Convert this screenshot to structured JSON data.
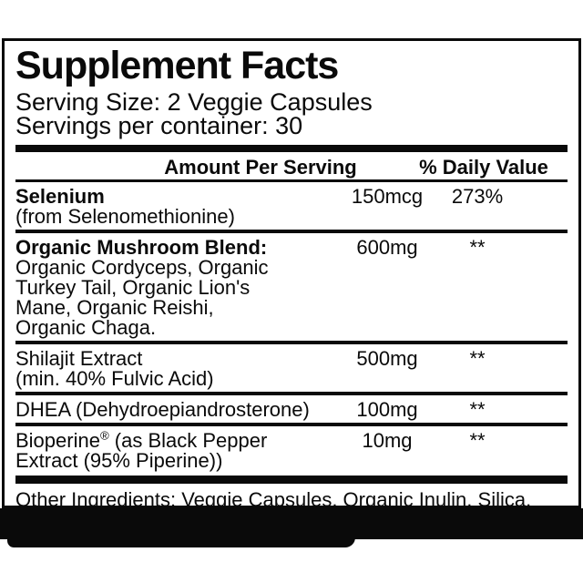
{
  "label": {
    "title": "Supplement Facts",
    "serving_size": "Serving Size: 2 Veggie Capsules",
    "servings_per_container": "Servings per container: 30",
    "columns": {
      "amount_header": "Amount Per Serving",
      "daily_value_header": "% Daily Value"
    },
    "rows": [
      {
        "name": "Selenium",
        "desc": "(from Selenomethionine)",
        "amount": "150mcg",
        "daily_value": "273%"
      },
      {
        "name": "Organic Mushroom Blend:",
        "desc": "Organic Cordyceps, Organic\nTurkey Tail, Organic Lion's\nMane, Organic Reishi,\nOrganic Chaga.",
        "amount": "600mg",
        "daily_value": "**"
      },
      {
        "name": "Shilajit Extract",
        "desc": "(min. 40% Fulvic Acid)",
        "amount": "500mg",
        "daily_value": "**"
      },
      {
        "name": "DHEA (Dehydroepiandrosterone)",
        "desc": "",
        "amount": "100mg",
        "daily_value": "**"
      },
      {
        "name_pre": "Bioperine",
        "name_sup": "®",
        "name_post": " (as Black Pepper\nExtract (95% Piperine))",
        "amount": "10mg",
        "daily_value": "**"
      }
    ],
    "other_ingredients": "Other Ingredients: Veggie Capsules, Organic Inulin, Silica.",
    "colors": {
      "text": "#0a0a0a",
      "background": "#ffffff",
      "band": "#0a0a0a"
    }
  }
}
